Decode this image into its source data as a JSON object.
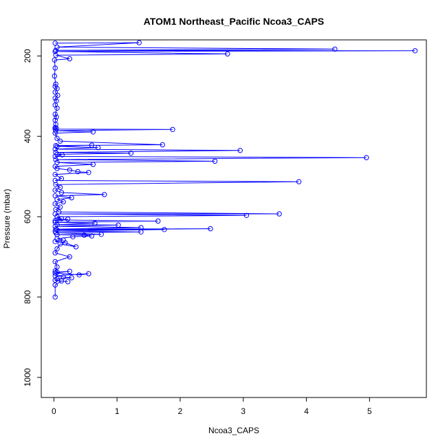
{
  "chart_data": {
    "type": "line",
    "title": "ATOM1 Northeast_Pacific Ncoa3_CAPS",
    "xlabel": "Ncoa3_CAPS",
    "ylabel": "Pressure (mbar)",
    "xlim": [
      -0.2,
      5.9
    ],
    "ylim": [
      1050,
      160
    ],
    "y_reversed": true,
    "x_ticks": [
      0,
      1,
      2,
      3,
      4,
      5
    ],
    "y_ticks": [
      200,
      400,
      600,
      800,
      1000
    ],
    "grid": false,
    "legend": "none",
    "series_color": "#0000ff",
    "marker": "open-circle",
    "series": [
      {
        "x": [
          0.02,
          1.35,
          0.05,
          4.45,
          0.03,
          5.72,
          0.02,
          2.75,
          0.03,
          0.25,
          0.01,
          0.02,
          0.01,
          0.03,
          0.02,
          0.05,
          0.02,
          0.06,
          0.02,
          0.04,
          0.02,
          0.05,
          0.02,
          0.04,
          0.02,
          0.03,
          0.02,
          0.04,
          0.02,
          1.88,
          0.03,
          0.62,
          0.02,
          0.05,
          0.1,
          1.72,
          0.03,
          0.6,
          0.05,
          0.7,
          0.02,
          2.95,
          0.03,
          1.22,
          0.05,
          0.13,
          0.02,
          4.95,
          0.03,
          2.55,
          0.05,
          0.62,
          0.02,
          0.05,
          0.25,
          0.38,
          0.55,
          0.02,
          0.12,
          0.02,
          3.88,
          0.03,
          0.1,
          0.02,
          0.12,
          0.8,
          0.02,
          0.28,
          0.05,
          0.15,
          0.02,
          0.1,
          0.03,
          0.08,
          3.57,
          0.02,
          3.05,
          0.05,
          0.12,
          0.02,
          0.22,
          0.05,
          1.65,
          0.02,
          0.65,
          0.05,
          1.02,
          0.02,
          1.38,
          0.03,
          2.48,
          0.05,
          1.75,
          0.02,
          1.38,
          0.03,
          0.75,
          0.05,
          0.48,
          0.6,
          0.3,
          0.05,
          0.15,
          0.02,
          0.18,
          0.35,
          0.1,
          0.05,
          0.02,
          0.25,
          0.02,
          0.05,
          0.02,
          0.05,
          0.25,
          0.02,
          0.4,
          0.55,
          0.02,
          0.15,
          0.28,
          0.05,
          0.02,
          0.22,
          0.12,
          0.02,
          0.02
        ],
        "y": [
          168,
          167,
          178,
          183,
          186,
          187,
          189,
          195,
          198,
          207,
          210,
          230,
          250,
          270,
          276,
          281,
          290,
          298,
          305,
          312,
          322,
          330,
          345,
          352,
          360,
          370,
          378,
          380,
          382,
          383,
          386,
          389,
          392,
          405,
          412,
          421,
          423,
          422,
          425,
          428,
          432,
          435,
          440,
          442,
          445,
          446,
          450,
          453,
          458,
          462,
          465,
          470,
          475,
          480,
          484,
          488,
          490,
          495,
          505,
          510,
          513,
          520,
          527,
          534,
          540,
          545,
          548,
          553,
          557,
          563,
          568,
          576,
          582,
          588,
          593,
          593,
          597,
          600,
          605,
          610,
          606,
          608,
          611,
          614,
          616,
          620,
          621,
          624,
          627,
          631,
          630,
          633,
          632,
          636,
          638,
          640,
          644,
          645,
          646,
          648,
          650,
          655,
          658,
          662,
          665,
          675,
          668,
          680,
          690,
          700,
          712,
          725,
          735,
          738,
          736,
          740,
          745,
          742,
          747,
          750,
          752,
          755,
          758,
          762,
          760,
          770,
          800
        ]
      }
    ]
  }
}
